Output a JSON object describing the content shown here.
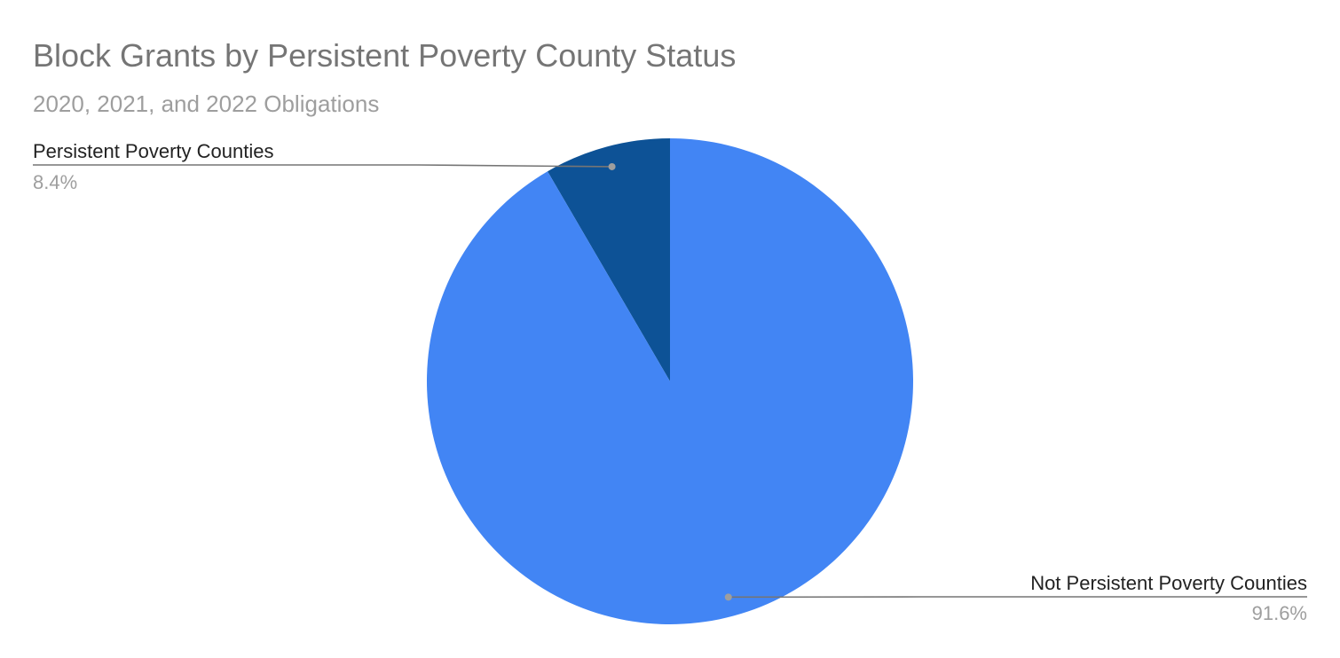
{
  "chart_data": {
    "type": "pie",
    "title": "Block Grants by Persistent Poverty County Status",
    "subtitle": "2020, 2021, and 2022 Obligations",
    "slices": [
      {
        "label": "Persistent Poverty Counties",
        "value": 8.4,
        "percent_label": "8.4%",
        "color": "#0d5296"
      },
      {
        "label": "Not Persistent Poverty Counties",
        "value": 91.6,
        "percent_label": "91.6%",
        "color": "#4285f4"
      }
    ],
    "legend": "none",
    "start_angle": "12 o'clock",
    "direction": "counter-clockwise"
  }
}
